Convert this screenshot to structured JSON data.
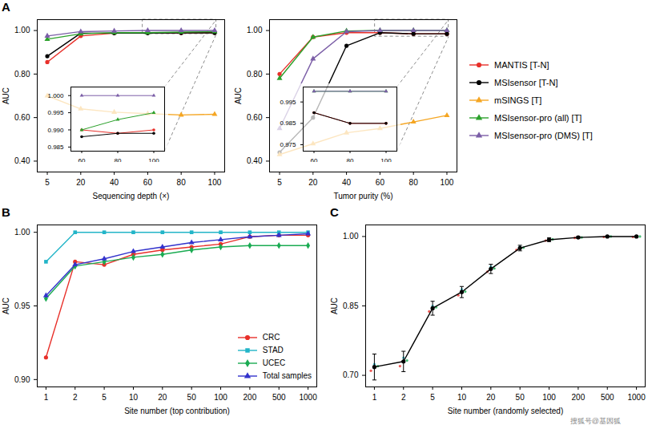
{
  "chart_data": [
    {
      "type": "line",
      "title": "A",
      "xlabel": "Sequencing depth (×)",
      "ylabel": "AUC",
      "categories": [
        5,
        20,
        40,
        60,
        80,
        100
      ],
      "ylim": [
        0.35,
        1.05
      ],
      "yticks": [
        {
          "value": 0.4,
          "label": "0.40"
        },
        {
          "value": 0.6,
          "label": "0.60"
        },
        {
          "value": 0.8,
          "label": "0.80"
        },
        {
          "value": 1.0,
          "label": "1.00"
        }
      ],
      "series": [
        {
          "name": "MANTIS [T-N]",
          "color": "#e8302a",
          "marker": "circle",
          "values": [
            0.855,
            0.975,
            0.988,
            0.99,
            0.989,
            0.99
          ]
        },
        {
          "name": "MSIsensor [T-N]",
          "color": "#000000",
          "marker": "circle",
          "values": [
            0.882,
            0.988,
            0.988,
            0.988,
            0.989,
            0.989
          ]
        },
        {
          "name": "mSINGS [T]",
          "color": "#f5a623",
          "marker": "triangle",
          "values": [
            0.7,
            0.64,
            0.625,
            0.618,
            0.612,
            0.615
          ]
        },
        {
          "name": "MSIsensor-pro (all) [T]",
          "color": "#2ca12c",
          "marker": "triangle",
          "values": [
            0.96,
            0.985,
            0.99,
            0.99,
            0.993,
            0.995
          ]
        },
        {
          "name": "MSIsensor-pro (DMS) [T]",
          "color": "#7b5ea7",
          "marker": "triangle",
          "values": [
            0.975,
            0.995,
            0.998,
            1.0,
            1.0,
            1.0
          ]
        }
      ]
    },
    {
      "type": "line",
      "categories": [
        60,
        80,
        100
      ],
      "ylim": [
        0.9838,
        1.0025
      ],
      "yticks": [
        0.985,
        {
          "value": 0.99,
          "label": "0.990"
        },
        0.995,
        {
          "value": 1.0,
          "label": "1.000"
        }
      ],
      "series": [
        {
          "name": "MANTIS [T-N]",
          "color": "#e8302a",
          "marker": "circle",
          "values": [
            0.99,
            0.989,
            0.99
          ]
        },
        {
          "name": "MSIsensor [T-N]",
          "color": "#000000",
          "marker": "circle",
          "values": [
            0.988,
            0.989,
            0.989
          ]
        },
        {
          "name": "MSIsensor-pro (all) [T]",
          "color": "#2ca12c",
          "marker": "triangle",
          "values": [
            0.99,
            0.993,
            0.995
          ]
        },
        {
          "name": "MSIsensor-pro (DMS) [T]",
          "color": "#7b5ea7",
          "marker": "triangle",
          "values": [
            1.0,
            1.0,
            1.0
          ]
        }
      ]
    },
    {
      "type": "line",
      "xlabel": "Tumor purity (%)",
      "ylabel": "AUC",
      "categories": [
        5,
        20,
        40,
        60,
        80,
        100
      ],
      "ylim": [
        0.35,
        1.05
      ],
      "yticks": [
        {
          "value": 0.4,
          "label": "0.40"
        },
        {
          "value": 0.6,
          "label": "0.60"
        },
        {
          "value": 0.8,
          "label": "0.80"
        },
        {
          "value": 1.0,
          "label": "1.00"
        }
      ],
      "legend": "right",
      "series": [
        {
          "name": "MANTIS [T-N]",
          "color": "#e8302a",
          "marker": "circle",
          "values": [
            0.8,
            0.97,
            0.99,
            0.99,
            0.985,
            0.985
          ]
        },
        {
          "name": "MSIsensor [T-N]",
          "color": "#000000",
          "marker": "circle",
          "values": [
            0.44,
            0.6,
            0.93,
            0.99,
            0.985,
            0.985
          ]
        },
        {
          "name": "mSINGS [T]",
          "color": "#f5a623",
          "marker": "triangle",
          "values": [
            0.43,
            0.48,
            0.53,
            0.55,
            0.58,
            0.61
          ]
        },
        {
          "name": "MSIsensor-pro (all) [T]",
          "color": "#2ca12c",
          "marker": "triangle",
          "values": [
            0.78,
            0.97,
            0.998,
            1.0,
            1.0,
            1.0
          ]
        },
        {
          "name": "MSIsensor-pro (DMS) [T]",
          "color": "#7b5ea7",
          "marker": "triangle",
          "values": [
            0.55,
            0.87,
            0.995,
            1.0,
            1.0,
            1.0
          ]
        }
      ]
    },
    {
      "type": "line",
      "categories": [
        60,
        80,
        100
      ],
      "ylim": [
        0.972,
        1.002
      ],
      "yticks": [
        0.975,
        0.985,
        0.995
      ],
      "series": [
        {
          "name": "MANTIS [T-N]",
          "color": "#e8302a",
          "marker": "circle",
          "values": [
            0.99,
            0.985,
            0.985
          ]
        },
        {
          "name": "MSIsensor [T-N]",
          "color": "#000000",
          "marker": "circle",
          "values": [
            0.99,
            0.985,
            0.985
          ]
        },
        {
          "name": "MSIsensor-pro (all) [T]",
          "color": "#2ca12c",
          "marker": "triangle",
          "values": [
            1.0,
            1.0,
            1.0
          ]
        },
        {
          "name": "MSIsensor-pro (DMS) [T]",
          "color": "#7b5ea7",
          "marker": "triangle",
          "values": [
            1.0,
            1.0,
            1.0
          ]
        }
      ]
    },
    {
      "type": "line",
      "title": "B",
      "xlabel": "Site number (top contribution)",
      "ylabel": "AUC",
      "categories": [
        1,
        2,
        5,
        10,
        20,
        50,
        100,
        200,
        500,
        1000
      ],
      "ylim": [
        0.895,
        1.005
      ],
      "yticks": [
        {
          "value": 0.9,
          "label": "0.90"
        },
        0.95,
        {
          "value": 1.0,
          "label": "1.00"
        }
      ],
      "legend": "lower right",
      "series": [
        {
          "name": "CRC",
          "color": "#e8302a",
          "marker": "circle",
          "values": [
            0.915,
            0.98,
            0.978,
            0.985,
            0.988,
            0.99,
            0.992,
            0.997,
            0.998,
            0.998
          ]
        },
        {
          "name": "STAD",
          "color": "#22b5c8",
          "marker": "square",
          "values": [
            0.98,
            1.0,
            1.0,
            1.0,
            1.0,
            1.0,
            1.0,
            1.0,
            1.0,
            1.0
          ]
        },
        {
          "name": "UCEC",
          "color": "#1aab52",
          "marker": "diamond",
          "values": [
            0.955,
            0.977,
            0.98,
            0.983,
            0.985,
            0.988,
            0.99,
            0.991,
            0.991,
            0.991
          ]
        },
        {
          "name": "Total samples",
          "color": "#3333cc",
          "marker": "triangle",
          "values": [
            0.957,
            0.978,
            0.982,
            0.987,
            0.99,
            0.993,
            0.995,
            0.997,
            0.998,
            0.999
          ]
        }
      ]
    },
    {
      "type": "line",
      "title": "C",
      "xlabel": "Site number (randomly selected)",
      "ylabel": "AUC",
      "categories": [
        1,
        2,
        5,
        10,
        20,
        50,
        100,
        200,
        500,
        1000
      ],
      "ylim": [
        0.675,
        1.025
      ],
      "yticks": [
        {
          "value": 0.7,
          "label": "0.70"
        },
        0.85,
        {
          "value": 1.0,
          "label": "1.00"
        }
      ],
      "annotations": [
        "搜狐号@基因狐"
      ],
      "series": [
        {
          "type": "scatter",
          "color": "#e8302a",
          "marker": "circle",
          "values": [
            0.71,
            0.72,
            0.838,
            0.873,
            0.924,
            0.971,
            0.991,
            0.997,
            0.999,
            0.999
          ]
        },
        {
          "type": "scatter",
          "color": "#22b5c8",
          "marker": "circle",
          "values": [
            0.724,
            0.738,
            0.85,
            0.886,
            0.935,
            0.978,
            0.994,
            0.999,
            1.0,
            1.0
          ]
        },
        {
          "type": "scatter",
          "color": "#1aab52",
          "marker": "circle",
          "values": [
            0.72,
            0.732,
            0.847,
            0.881,
            0.931,
            0.976,
            0.994,
            0.998,
            1.0,
            1.0
          ]
        },
        {
          "type": "line",
          "color": "#000000",
          "marker": "circle",
          "values": [
            0.718,
            0.73,
            0.845,
            0.88,
            0.93,
            0.975,
            0.993,
            0.998,
            1.0,
            1.0
          ],
          "errors": [
            0.028,
            0.022,
            0.015,
            0.012,
            0.01,
            0.006,
            0.004,
            0.002,
            0.001,
            0.001
          ]
        }
      ]
    }
  ]
}
